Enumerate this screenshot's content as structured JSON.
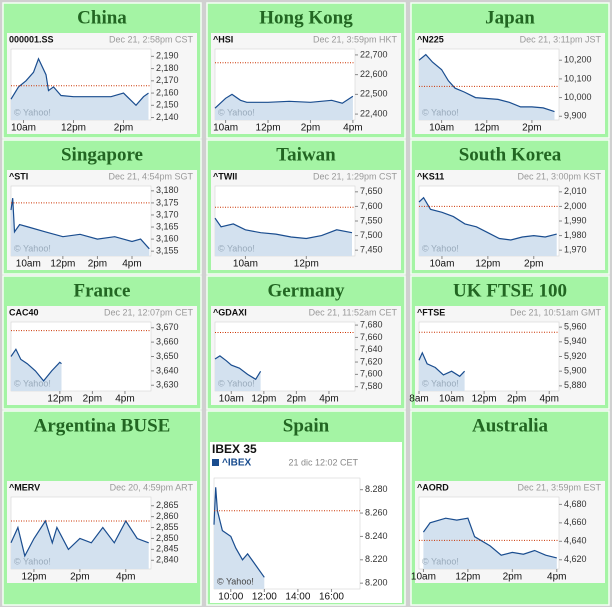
{
  "chart_data": [
    {
      "type": "line",
      "title": "China",
      "date": "Dec 21, 2:58pm CST",
      "watermark": "© Yahoo!",
      "x": [
        9.5,
        9.8,
        10.1,
        10.4,
        10.6,
        10.9,
        11.0,
        11.2,
        11.5,
        12.0,
        13.0,
        13.5,
        14.0,
        14.5,
        14.8,
        15.0
      ],
      "series": [
        {
          "name": "000001.SS",
          "color": "#1a4d8f",
          "values": [
            2155,
            2165,
            2170,
            2177,
            2188,
            2175,
            2162,
            2165,
            2158,
            2157,
            2157,
            2157,
            2160,
            2150,
            2157,
            2160
          ]
        }
      ],
      "reference": 2166,
      "reference_color": "#cc3300",
      "ylim": [
        2138,
        2196
      ],
      "yticks": [
        {
          "value": 2140,
          "label": "2,140"
        },
        {
          "value": 2150,
          "label": "2,150"
        },
        {
          "value": 2160,
          "label": "2,160"
        },
        {
          "value": 2170,
          "label": "2,170"
        },
        {
          "value": 2180,
          "label": "2,180"
        },
        {
          "value": 2190,
          "label": "2,190"
        }
      ],
      "xlim": [
        9.5,
        15.1
      ],
      "xticks": [
        {
          "value": 10,
          "label": "10am"
        },
        {
          "value": 12,
          "label": "12pm"
        },
        {
          "value": 14,
          "label": "2pm"
        }
      ]
    },
    {
      "type": "line",
      "title": "Hong Kong",
      "date": "Dec 21, 3:59pm HKT",
      "watermark": "© Yahoo!",
      "x": [
        9.5,
        10.0,
        10.3,
        10.7,
        11.0,
        12.0,
        13.0,
        14.0,
        15.0,
        15.5,
        16.0
      ],
      "series": [
        {
          "name": "^HSI",
          "color": "#1a4d8f",
          "values": [
            22430,
            22480,
            22500,
            22470,
            22460,
            22460,
            22465,
            22460,
            22470,
            22455,
            22490
          ]
        }
      ],
      "reference": 22660,
      "reference_color": "#cc3300",
      "ylim": [
        22370,
        22730
      ],
      "yticks": [
        {
          "value": 22400,
          "label": "22,400"
        },
        {
          "value": 22500,
          "label": "22,500"
        },
        {
          "value": 22600,
          "label": "22,600"
        },
        {
          "value": 22700,
          "label": "22,700"
        }
      ],
      "xlim": [
        9.5,
        16.1
      ],
      "xticks": [
        {
          "value": 10,
          "label": "10am"
        },
        {
          "value": 12,
          "label": "12pm"
        },
        {
          "value": 14,
          "label": "2pm"
        },
        {
          "value": 16,
          "label": "4pm"
        }
      ]
    },
    {
      "type": "line",
      "title": "Japan",
      "date": "Dec 21, 3:11pm JST",
      "watermark": "© Yahoo!",
      "x": [
        9.0,
        9.3,
        9.6,
        10.0,
        10.3,
        10.6,
        11.0,
        11.5,
        12.5,
        13.0,
        13.5,
        14.0,
        14.5,
        15.0
      ],
      "series": [
        {
          "name": "^N225",
          "color": "#1a4d8f",
          "values": [
            10200,
            10230,
            10190,
            10150,
            10090,
            10050,
            10030,
            10000,
            9990,
            9975,
            9950,
            9950,
            9945,
            9925
          ]
        }
      ],
      "reference": 10060,
      "reference_color": "#cc3300",
      "ylim": [
        9880,
        10260
      ],
      "yticks": [
        {
          "value": 9900,
          "label": "9,900"
        },
        {
          "value": 10000,
          "label": "10,000"
        },
        {
          "value": 10100,
          "label": "10,100"
        },
        {
          "value": 10200,
          "label": "10,200"
        }
      ],
      "xlim": [
        9,
        15.2
      ],
      "xticks": [
        {
          "value": 10,
          "label": "10am"
        },
        {
          "value": 12,
          "label": "12pm"
        },
        {
          "value": 14,
          "label": "2pm"
        }
      ]
    },
    {
      "type": "line",
      "title": "Singapore",
      "date": "Dec 21, 4:54pm SGT",
      "watermark": "© Yahoo!",
      "x": [
        9.0,
        9.1,
        9.2,
        9.5,
        10.0,
        11.0,
        12.0,
        13.0,
        14.0,
        15.0,
        16.0,
        16.5,
        17.0
      ],
      "series": [
        {
          "name": "^STI",
          "color": "#1a4d8f",
          "values": [
            3172,
            3177,
            3163,
            3166,
            3165,
            3163,
            3161,
            3162,
            3160,
            3161,
            3159,
            3160,
            3156
          ]
        }
      ],
      "reference": 3175,
      "reference_color": "#cc3300",
      "ylim": [
        3153,
        3182
      ],
      "yticks": [
        {
          "value": 3155,
          "label": "3,155"
        },
        {
          "value": 3160,
          "label": "3,160"
        },
        {
          "value": 3165,
          "label": "3,165"
        },
        {
          "value": 3170,
          "label": "3,170"
        },
        {
          "value": 3175,
          "label": "3,175"
        },
        {
          "value": 3180,
          "label": "3,180"
        }
      ],
      "xlim": [
        9,
        17.1
      ],
      "xticks": [
        {
          "value": 10,
          "label": "10am"
        },
        {
          "value": 12,
          "label": "12pm"
        },
        {
          "value": 14,
          "label": "2pm"
        },
        {
          "value": 16,
          "label": "4pm"
        }
      ]
    },
    {
      "type": "line",
      "title": "Taiwan",
      "date": "Dec 21, 1:29pm CST",
      "watermark": "© Yahoo!",
      "x": [
        9.0,
        9.2,
        9.6,
        10.0,
        10.5,
        11.0,
        11.5,
        12.0,
        12.5,
        13.0,
        13.5
      ],
      "series": [
        {
          "name": "^TWII",
          "color": "#1a4d8f",
          "values": [
            7560,
            7530,
            7540,
            7520,
            7510,
            7505,
            7495,
            7490,
            7500,
            7520,
            7510
          ]
        }
      ],
      "reference": 7597,
      "reference_color": "#cc3300",
      "ylim": [
        7430,
        7670
      ],
      "yticks": [
        {
          "value": 7450,
          "label": "7,450"
        },
        {
          "value": 7500,
          "label": "7,500"
        },
        {
          "value": 7550,
          "label": "7,550"
        },
        {
          "value": 7600,
          "label": "7,600"
        },
        {
          "value": 7650,
          "label": "7,650"
        }
      ],
      "xlim": [
        9,
        13.6
      ],
      "xticks": [
        {
          "value": 10,
          "label": "10am"
        },
        {
          "value": 12,
          "label": "12pm"
        }
      ]
    },
    {
      "type": "line",
      "title": "South Korea",
      "date": "Dec 21, 3:00pm KST",
      "watermark": "© Yahoo!",
      "x": [
        9.0,
        9.2,
        9.5,
        10.0,
        10.5,
        11.0,
        11.5,
        12.0,
        12.5,
        13.0,
        13.5,
        14.0,
        14.5,
        15.0
      ],
      "series": [
        {
          "name": "^KS11",
          "color": "#1a4d8f",
          "values": [
            2003,
            2006,
            1998,
            1996,
            1993,
            1988,
            1986,
            1982,
            1978,
            1977,
            1979,
            1980,
            1979,
            1981
          ]
        }
      ],
      "reference": 2000,
      "reference_color": "#cc3300",
      "ylim": [
        1966,
        2014
      ],
      "yticks": [
        {
          "value": 1970,
          "label": "1,970"
        },
        {
          "value": 1980,
          "label": "1,980"
        },
        {
          "value": 1990,
          "label": "1,990"
        },
        {
          "value": 2000,
          "label": "2,000"
        },
        {
          "value": 2010,
          "label": "2,010"
        }
      ],
      "xlim": [
        9,
        15.1
      ],
      "xticks": [
        {
          "value": 10,
          "label": "10am"
        },
        {
          "value": 12,
          "label": "12pm"
        },
        {
          "value": 14,
          "label": "2pm"
        }
      ]
    },
    {
      "type": "line",
      "title": "France",
      "date": "Dec 21, 12:07pm CET",
      "watermark": "© Yahoo!",
      "x": [
        9.0,
        9.3,
        9.6,
        10.0,
        10.5,
        11.0,
        11.5,
        12.0,
        12.1
      ],
      "series": [
        {
          "name": "CAC40",
          "color": "#1a4d8f",
          "values": [
            3650,
            3655,
            3648,
            3645,
            3640,
            3633,
            3640,
            3646,
            3645
          ]
        }
      ],
      "reference": 3668,
      "reference_color": "#cc3300",
      "ylim": [
        3626,
        3674
      ],
      "yticks": [
        {
          "value": 3630,
          "label": "3,630"
        },
        {
          "value": 3640,
          "label": "3,640"
        },
        {
          "value": 3650,
          "label": "3,650"
        },
        {
          "value": 3660,
          "label": "3,660"
        },
        {
          "value": 3670,
          "label": "3,670"
        }
      ],
      "xlim": [
        9,
        17.6
      ],
      "xticks": [
        {
          "value": 12,
          "label": "12pm"
        },
        {
          "value": 14,
          "label": "2pm"
        },
        {
          "value": 16,
          "label": "4pm"
        }
      ]
    },
    {
      "type": "line",
      "title": "Germany",
      "date": "Dec 21, 11:52am CET",
      "watermark": "© Yahoo!",
      "x": [
        9.0,
        9.3,
        9.7,
        10.0,
        10.5,
        11.0,
        11.5,
        11.8
      ],
      "series": [
        {
          "name": "^GDAXI",
          "color": "#1a4d8f",
          "values": [
            7625,
            7630,
            7622,
            7615,
            7610,
            7600,
            7592,
            7605
          ]
        }
      ],
      "reference": 7668,
      "reference_color": "#cc3300",
      "ylim": [
        7573,
        7685
      ],
      "yticks": [
        {
          "value": 7580,
          "label": "7,580"
        },
        {
          "value": 7600,
          "label": "7,600"
        },
        {
          "value": 7620,
          "label": "7,620"
        },
        {
          "value": 7640,
          "label": "7,640"
        },
        {
          "value": 7660,
          "label": "7,660"
        },
        {
          "value": 7680,
          "label": "7,680"
        }
      ],
      "xlim": [
        9,
        17.6
      ],
      "xticks": [
        {
          "value": 10,
          "label": "10am"
        },
        {
          "value": 12,
          "label": "12pm"
        },
        {
          "value": 14,
          "label": "2pm"
        },
        {
          "value": 16,
          "label": "4pm"
        }
      ]
    },
    {
      "type": "line",
      "title": "UK FTSE 100",
      "date": "Dec 21, 10:51am GMT",
      "watermark": "© Yahoo!",
      "x": [
        8.0,
        8.2,
        8.5,
        9.0,
        9.5,
        10.0,
        10.5,
        10.8
      ],
      "series": [
        {
          "name": "^FTSE",
          "color": "#1a4d8f",
          "values": [
            5915,
            5925,
            5910,
            5905,
            5895,
            5900,
            5893,
            5900
          ]
        }
      ],
      "reference": 5953,
      "reference_color": "#cc3300",
      "ylim": [
        5873,
        5967
      ],
      "yticks": [
        {
          "value": 5880,
          "label": "5,880"
        },
        {
          "value": 5900,
          "label": "5,900"
        },
        {
          "value": 5920,
          "label": "5,920"
        },
        {
          "value": 5940,
          "label": "5,940"
        },
        {
          "value": 5960,
          "label": "5,960"
        }
      ],
      "xlim": [
        8,
        16.6
      ],
      "xticks": [
        {
          "value": 8,
          "label": "8am"
        },
        {
          "value": 10,
          "label": "10am"
        },
        {
          "value": 12,
          "label": "12pm"
        },
        {
          "value": 14,
          "label": "2pm"
        },
        {
          "value": 16,
          "label": "4pm"
        }
      ]
    },
    {
      "type": "line",
      "title": "Argentina BUSE",
      "date": "Dec 20, 4:59pm ART",
      "watermark": "© Yahoo!",
      "x": [
        11.0,
        11.3,
        11.6,
        12.0,
        12.5,
        12.8,
        13.0,
        13.5,
        14.0,
        14.5,
        15.0,
        15.5,
        16.0,
        16.5,
        17.0
      ],
      "series": [
        {
          "name": "^MERV",
          "color": "#1a4d8f",
          "values": [
            2848,
            2855,
            2842,
            2850,
            2858,
            2848,
            2855,
            2845,
            2850,
            2848,
            2855,
            2848,
            2858,
            2850,
            2848
          ]
        }
      ],
      "reference": 2858,
      "reference_color": "#cc3300",
      "ylim": [
        2836,
        2869
      ],
      "yticks": [
        {
          "value": 2840,
          "label": "2,840"
        },
        {
          "value": 2845,
          "label": "2,845"
        },
        {
          "value": 2850,
          "label": "2,850"
        },
        {
          "value": 2855,
          "label": "2,855"
        },
        {
          "value": 2860,
          "label": "2,860"
        },
        {
          "value": 2865,
          "label": "2,865"
        }
      ],
      "xlim": [
        11,
        17.1
      ],
      "xticks": [
        {
          "value": 12,
          "label": "12pm"
        },
        {
          "value": 14,
          "label": "2pm"
        },
        {
          "value": 16,
          "label": "4pm"
        }
      ]
    },
    {
      "type": "line",
      "title": "Spain",
      "subtitle": "IBEX 35",
      "legend": true,
      "date": "21 dic 12:02 CET",
      "watermark": "© Yahoo!",
      "x": [
        9.0,
        9.1,
        9.2,
        9.5,
        10.0,
        10.3,
        10.7,
        11.0,
        11.5,
        12.0
      ],
      "series": [
        {
          "name": "^IBEX",
          "color": "#1a4d8f",
          "values": [
            8250,
            8282,
            8262,
            8245,
            8240,
            8230,
            8220,
            8225,
            8215,
            8205
          ]
        }
      ],
      "reference": 8262,
      "reference_color": "#cc3300",
      "ylim": [
        8195,
        8290
      ],
      "yticks": [
        {
          "value": 8200,
          "label": "8.200"
        },
        {
          "value": 8220,
          "label": "8.220"
        },
        {
          "value": 8240,
          "label": "8.240"
        },
        {
          "value": 8260,
          "label": "8.260"
        },
        {
          "value": 8280,
          "label": "8.280"
        }
      ],
      "xlim": [
        9,
        17.7
      ],
      "xticks": [
        {
          "value": 10,
          "label": "10:00"
        },
        {
          "value": 12,
          "label": "12:00"
        },
        {
          "value": 14,
          "label": "14:00"
        },
        {
          "value": 16,
          "label": "16:00"
        }
      ]
    },
    {
      "type": "line",
      "title": "Australia",
      "date": "Dec 21, 3:59pm EST",
      "watermark": "© Yahoo!",
      "x": [
        10.0,
        10.3,
        11.0,
        11.5,
        12.0,
        12.3,
        13.0,
        13.5,
        14.0,
        14.5,
        15.0,
        15.5,
        16.0
      ],
      "series": [
        {
          "name": "^AORD",
          "color": "#1a4d8f",
          "values": [
            4650,
            4660,
            4665,
            4663,
            4665,
            4645,
            4635,
            4625,
            4628,
            4626,
            4630,
            4625,
            4622
          ]
        }
      ],
      "reference": 4641,
      "reference_color": "#cc3300",
      "ylim": [
        4610,
        4688
      ],
      "yticks": [
        {
          "value": 4620,
          "label": "4,620"
        },
        {
          "value": 4640,
          "label": "4,640"
        },
        {
          "value": 4660,
          "label": "4,660"
        },
        {
          "value": 4680,
          "label": "4,680"
        }
      ],
      "xlim": [
        9.8,
        16.1
      ],
      "xticks": [
        {
          "value": 10,
          "label": "10am"
        },
        {
          "value": 12,
          "label": "12pm"
        },
        {
          "value": 14,
          "label": "2pm"
        },
        {
          "value": 16,
          "label": "4pm"
        }
      ]
    }
  ]
}
